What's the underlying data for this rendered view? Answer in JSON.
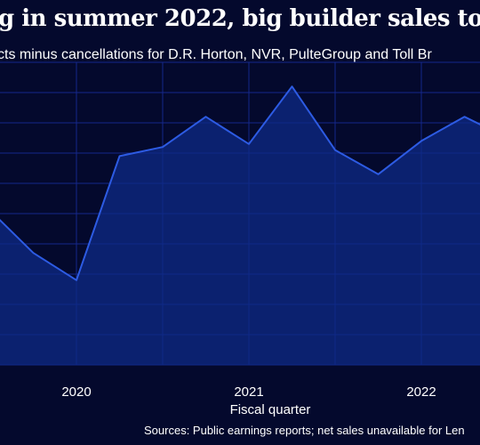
{
  "chart_data": {
    "type": "area",
    "title": "g in summer 2022, big builder sales too",
    "subtitle": "cts minus cancellations for D.R. Horton, NVR, PulteGroup and Toll Br",
    "xlabel": "Fiscal quarter",
    "ylabel": "",
    "source": "Sources: Public earnings reports; net sales unavailable for Len",
    "x_ticks": [
      "2020",
      "2021",
      "2022"
    ],
    "x": [
      2019.0,
      2019.25,
      2019.5,
      2019.75,
      2020.0,
      2020.25,
      2020.5,
      2020.75,
      2021.0,
      2021.25,
      2021.5,
      2021.75,
      2022.0,
      2022.25,
      2022.5
    ],
    "values": [
      64,
      57,
      51,
      37,
      28,
      69,
      72,
      82,
      73,
      92,
      71,
      63,
      74,
      82,
      75
    ],
    "ylim": [
      0,
      100
    ],
    "grid": true,
    "colors": {
      "background": "#04092d",
      "line": "#2d5be3",
      "fill": "#0e2a86",
      "grid": "#15288a"
    }
  }
}
